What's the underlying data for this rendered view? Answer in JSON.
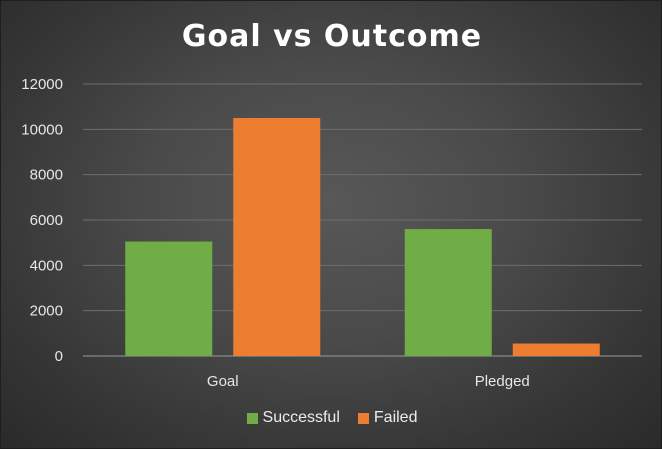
{
  "chart_data": {
    "type": "bar",
    "title": "Goal vs Outcome",
    "categories": [
      "Goal",
      "Pledged"
    ],
    "series": [
      {
        "name": "Successful",
        "values": [
          5050,
          5600
        ],
        "color": "#70AD47"
      },
      {
        "name": "Failed",
        "values": [
          10500,
          550
        ],
        "color": "#ED7D31"
      }
    ],
    "ylim": [
      0,
      12000
    ],
    "yticks": [
      "0",
      "2000",
      "4000",
      "6000",
      "8000",
      "10000",
      "12000"
    ],
    "grid": true,
    "legend_position": "bottom",
    "background": "#4a4a4a"
  }
}
